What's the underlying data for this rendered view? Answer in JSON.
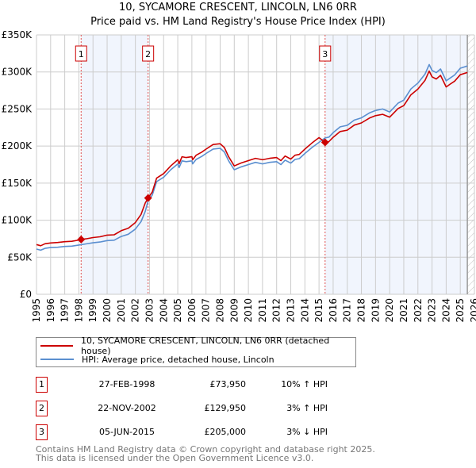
{
  "title": "10, SYCAMORE CRESCENT, LINCOLN, LN6 0RR",
  "subtitle": "Price paid vs. HM Land Registry's House Price Index (HPI)",
  "chart_data": {
    "type": "line",
    "title": "10, SYCAMORE CRESCENT, LINCOLN, LN6 0RR",
    "subtitle": "Price paid vs. HM Land Registry's House Price Index (HPI)",
    "xlim": [
      1995,
      2026
    ],
    "ylim": [
      0,
      350000
    ],
    "x_ticks": [
      "1995",
      "1996",
      "1997",
      "1998",
      "1999",
      "2000",
      "2001",
      "2002",
      "2003",
      "2004",
      "2005",
      "2006",
      "2007",
      "2008",
      "2009",
      "2010",
      "2011",
      "2012",
      "2013",
      "2014",
      "2015",
      "2016",
      "2017",
      "2018",
      "2019",
      "2020",
      "2021",
      "2022",
      "2023",
      "2024",
      "2025",
      "2026"
    ],
    "y_ticks": [
      {
        "v": 0,
        "label": "£0"
      },
      {
        "v": 50000,
        "label": "£50K"
      },
      {
        "v": 100000,
        "label": "£100K"
      },
      {
        "v": 150000,
        "label": "£150K"
      },
      {
        "v": 200000,
        "label": "£200K"
      },
      {
        "v": 250000,
        "label": "£250K"
      },
      {
        "v": 300000,
        "label": "£300K"
      },
      {
        "v": 350000,
        "label": "£350K"
      }
    ],
    "grid": true,
    "data_end": 2025.5,
    "x": [
      1995.0,
      1995.3,
      1995.6,
      1996,
      1996.5,
      1997,
      1997.5,
      1998,
      1998.16,
      1998.5,
      1999,
      1999.5,
      2000,
      2000.5,
      2001,
      2001.5,
      2002,
      2002.4,
      2002.7,
      2002.9,
      2003.2,
      2003.5,
      2004,
      2004.5,
      2005,
      2005.1,
      2005.3,
      2005.6,
      2006,
      2006.05,
      2006.3,
      2006.7,
      2007,
      2007.5,
      2008,
      2008.3,
      2008.6,
      2009,
      2009.5,
      2010,
      2010.5,
      2011,
      2011.5,
      2012,
      2012.3,
      2012.6,
      2013,
      2013.3,
      2013.6,
      2014,
      2014.5,
      2015,
      2015.43,
      2015.7,
      2016,
      2016.5,
      2017,
      2017.5,
      2018,
      2018.6,
      2019,
      2019.5,
      2020,
      2020.6,
      2021,
      2021.5,
      2022,
      2022.5,
      2022.8,
      2023,
      2023.3,
      2023.6,
      2024,
      2024.3,
      2024.6,
      2025,
      2025.5
    ],
    "series": [
      {
        "name": "10, SYCAMORE CRESCENT, LINCOLN, LN6 0RR (detached house)",
        "color": "#cc0000",
        "unit": "thousand GBP",
        "values": [
          67.1,
          65.5,
          68.2,
          69.3,
          69.9,
          71,
          71.5,
          73.2,
          73.95,
          74.8,
          76.5,
          77.6,
          79.8,
          80.3,
          85.8,
          89.1,
          96.8,
          107.8,
          123.2,
          129.95,
          138.2,
          156.7,
          162.9,
          173.2,
          181.5,
          176.3,
          185.6,
          184.5,
          185.6,
          181.5,
          187.6,
          191.8,
          195.9,
          202.1,
          203.1,
          198,
          185.6,
          173.2,
          177.3,
          180.4,
          183.5,
          181.5,
          183.5,
          184.5,
          180.4,
          186.6,
          182.5,
          187.6,
          188.7,
          195.9,
          204.1,
          211.4,
          205,
          206,
          211.8,
          219.6,
          221.5,
          228.3,
          231.2,
          238,
          241,
          242.9,
          239,
          250.7,
          254.6,
          269.1,
          276.9,
          288.6,
          301.2,
          293.4,
          290.5,
          295.4,
          279.8,
          283.7,
          287.6,
          296.3,
          299.3
        ]
      },
      {
        "name": "HPI: Average price, detached house, Lincoln",
        "color": "#5b8fd0",
        "unit": "thousand GBP",
        "values": [
          61,
          59.5,
          62,
          63,
          63.5,
          64.5,
          65,
          66.5,
          67,
          68,
          69.5,
          70.5,
          72.5,
          73,
          78,
          81,
          88,
          98,
          112,
          126,
          134,
          152,
          158,
          168,
          176,
          171,
          180,
          179,
          180,
          176,
          182,
          186,
          190,
          196,
          197,
          192,
          180,
          168,
          172,
          175,
          178,
          176,
          178,
          179,
          175,
          181,
          177,
          182,
          183,
          190,
          198,
          205,
          211,
          212,
          218,
          226,
          228,
          235,
          238,
          245,
          248,
          250,
          246,
          258,
          262,
          277,
          285,
          297,
          310,
          302,
          299,
          304,
          288,
          292,
          296,
          305,
          308
        ]
      }
    ],
    "sales": [
      {
        "n": "1",
        "x": 1998.16,
        "date": "27-FEB-1998",
        "price": "£73,950",
        "value": 73.95,
        "hpi": "10% ↑ HPI"
      },
      {
        "n": "2",
        "x": 2002.9,
        "date": "22-NOV-2002",
        "price": "£129,950",
        "value": 129.95,
        "hpi": "3% ↑ HPI"
      },
      {
        "n": "3",
        "x": 2015.43,
        "date": "05-JUN-2015",
        "price": "£205,000",
        "value": 205,
        "hpi": "3% ↓ HPI"
      }
    ],
    "legend": [
      "10, SYCAMORE CRESCENT, LINCOLN, LN6 0RR (detached house)",
      "HPI: Average price, detached house, Lincoln"
    ],
    "legend_placement": "below"
  },
  "footer": {
    "line1": "Contains HM Land Registry data © Crown copyright and database right 2025.",
    "line2": "This data is licensed under the Open Government Licence v3.0."
  }
}
